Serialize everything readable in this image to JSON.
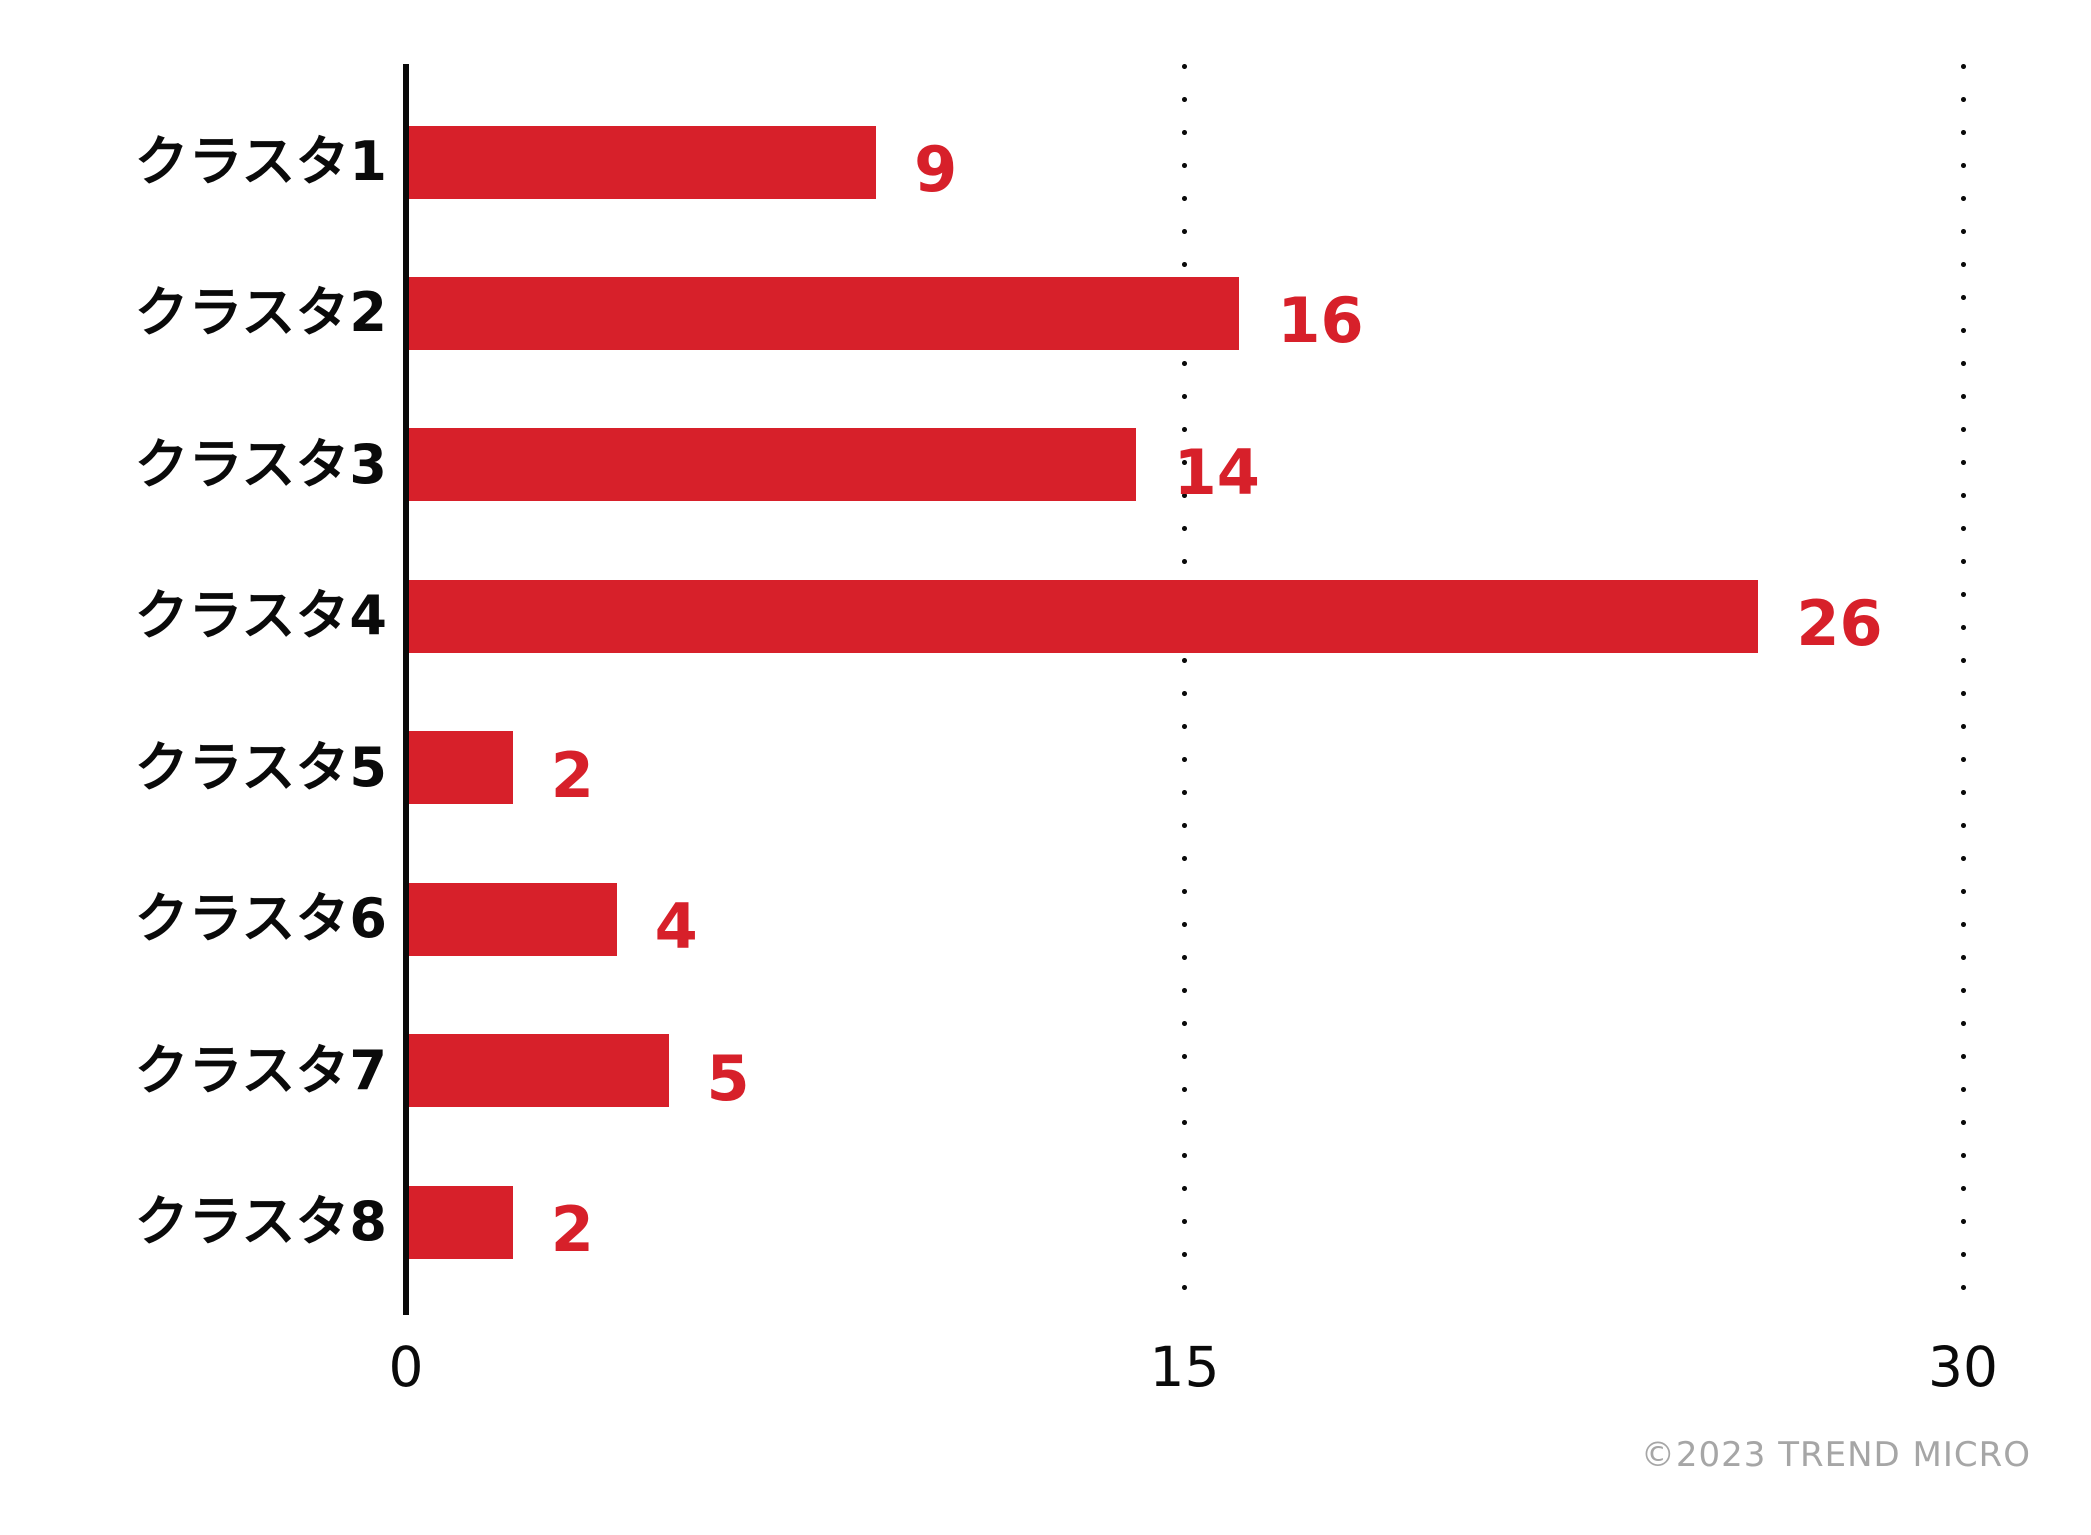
{
  "chart_data": {
    "type": "bar",
    "orientation": "horizontal",
    "categories": [
      "クラスタ1",
      "クラスタ2",
      "クラスタ3",
      "クラスタ4",
      "クラスタ5",
      "クラスタ6",
      "クラスタ7",
      "クラスタ8"
    ],
    "values": [
      9,
      16,
      14,
      26,
      2,
      4,
      5,
      2
    ],
    "title": "",
    "xlabel": "",
    "ylabel": "",
    "xlim": [
      0,
      30
    ],
    "x_ticks": [
      0,
      15,
      30
    ],
    "grid": "dotted vertical gridlines at x=15 and x=30",
    "legend": "none",
    "bar_color": "#d7202a",
    "value_label_color": "#d7202a",
    "axis_color": "#0a0a0a",
    "background_color": "#ffffff"
  },
  "footer": {
    "copyright": "©2023 TREND MICRO",
    "copyright_color": "#a6a6a6"
  }
}
